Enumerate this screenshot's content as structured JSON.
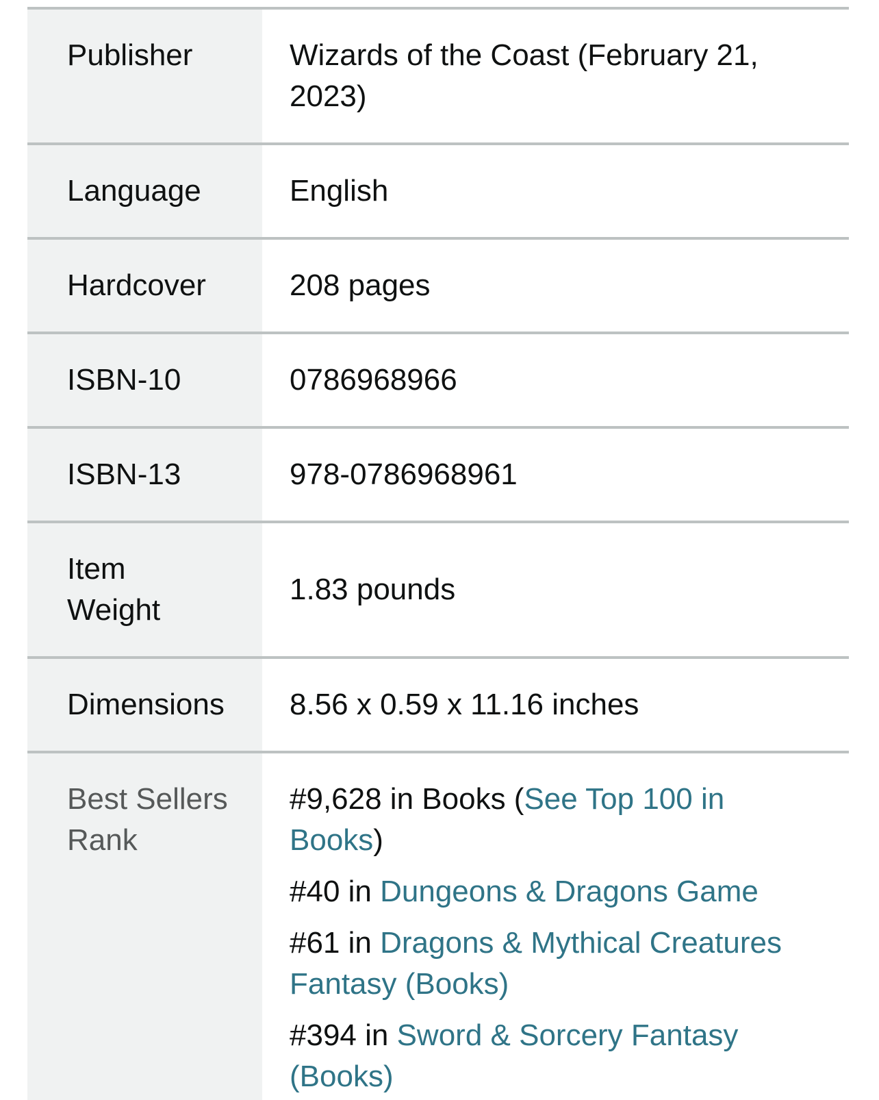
{
  "colors": {
    "label_background": "#F0F2F2",
    "row_border": "#BDC2C2",
    "text": "#0F1111",
    "muted_label": "#565959",
    "link": "#2F7487"
  },
  "details": {
    "rows": [
      {
        "label": "Publisher",
        "value": "Wizards of the Coast (February 21,\n2023)"
      },
      {
        "label": "Language",
        "value": "English"
      },
      {
        "label": "Hardcover",
        "value": "208 pages"
      },
      {
        "label": "ISBN-10",
        "value": "0786968966"
      },
      {
        "label": "ISBN-13",
        "value": "978-0786968961"
      },
      {
        "label": "Item\nWeight",
        "value": "1.83 pounds"
      },
      {
        "label": "Dimensions",
        "value": "8.56 x 0.59 x 11.16 inches"
      }
    ],
    "best_sellers": {
      "label": "Best Sellers\nRank",
      "ranks": [
        {
          "pre": "#9,628 in Books (",
          "link": "See Top 100 in\nBooks",
          "post": ")"
        },
        {
          "pre": "#40 in ",
          "link": "Dungeons & Dragons Game",
          "post": ""
        },
        {
          "pre": "#61 in ",
          "link": "Dragons & Mythical Creatures\nFantasy (Books)",
          "post": ""
        },
        {
          "pre": "#394 in ",
          "link": "Sword & Sorcery Fantasy\n(Books)",
          "post": ""
        }
      ]
    }
  }
}
